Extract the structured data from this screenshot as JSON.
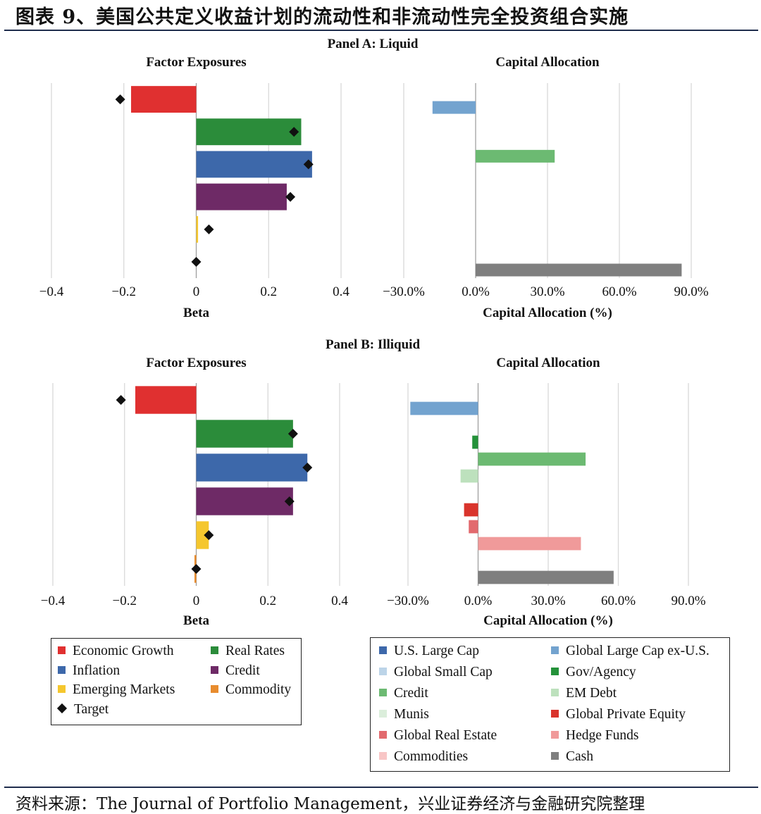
{
  "figure": {
    "title": "图表 9、美国公共定义收益计划的流动性和非流动性完全投资组合实施",
    "source": "资料来源：The Journal of Portfolio Management，兴业证券经济与金融研究院整理"
  },
  "colors": {
    "Economic Growth": "#e03030",
    "Real Rates": "#2b8c3a",
    "Inflation": "#3d68aa",
    "Credit (factor)": "#6e2a66",
    "Emerging Markets": "#f5c72e",
    "Commodity": "#e88c2e",
    "Target": "#111111",
    "U.S. Large Cap": "#3d68aa",
    "Global Large Cap ex-U.S.": "#73a3cf",
    "Global Small Cap": "#bcd4e8",
    "Gov/Agency": "#24923a",
    "Credit": "#6cba72",
    "EM Debt": "#bde1bd",
    "Munis": "#dbeedb",
    "Global Private Equity": "#d9342c",
    "Global Real Estate": "#e26a6e",
    "Hedge Funds": "#f09a9a",
    "Commodities": "#f8c6c6",
    "Cash": "#7f7f7f",
    "gridline": "#d9d9d9",
    "zeroline": "#9a9a9a"
  },
  "chart_data": [
    {
      "id": "A-factor",
      "type": "bar",
      "orientation": "horizontal",
      "panel": "Panel A: Liquid",
      "title": "Factor Exposures",
      "xlabel": "Beta",
      "xlim": [
        -0.4,
        0.4
      ],
      "ticks": [
        -0.4,
        -0.2,
        0,
        0.2,
        0.4
      ],
      "tick_labels": [
        "−0.4",
        "−0.2",
        "0",
        "0.2",
        "0.4"
      ],
      "categories": [
        "Economic Growth",
        "Real Rates",
        "Inflation",
        "Credit",
        "Emerging Markets",
        "Commodity"
      ],
      "values": [
        -0.18,
        0.29,
        0.32,
        0.25,
        0.005,
        0.0
      ],
      "targets": [
        -0.21,
        0.27,
        0.31,
        0.26,
        0.035,
        0.0
      ]
    },
    {
      "id": "A-alloc",
      "type": "bar",
      "orientation": "horizontal",
      "title": "Capital Allocation",
      "xlabel": "Capital Allocation (%)",
      "xlim": [
        -30,
        90
      ],
      "ticks": [
        -30,
        0,
        30,
        60,
        90
      ],
      "tick_labels": [
        "−30.0%",
        "0.0%",
        "30.0%",
        "60.0%",
        "90.0%"
      ],
      "categories": [
        "U.S. Large Cap",
        "Global Large Cap ex-U.S.",
        "Global Small Cap",
        "Gov/Agency",
        "Credit",
        "EM Debt",
        "Munis",
        "Global Private Equity",
        "Global Real Estate",
        "Hedge Funds",
        "Commodities",
        "Cash"
      ],
      "values": [
        0,
        -18,
        0,
        0,
        33,
        0,
        0,
        0,
        0,
        0,
        0,
        86
      ]
    },
    {
      "id": "B-factor",
      "type": "bar",
      "orientation": "horizontal",
      "panel": "Panel B: Illiquid",
      "title": "Factor Exposures",
      "xlabel": "Beta",
      "xlim": [
        -0.4,
        0.4
      ],
      "ticks": [
        -0.4,
        -0.2,
        0,
        0.2,
        0.4
      ],
      "tick_labels": [
        "−0.4",
        "−0.2",
        "0",
        "0.2",
        "0.4"
      ],
      "categories": [
        "Economic Growth",
        "Real Rates",
        "Inflation",
        "Credit",
        "Emerging Markets",
        "Commodity"
      ],
      "values": [
        -0.17,
        0.27,
        0.31,
        0.27,
        0.035,
        -0.005
      ],
      "targets": [
        -0.21,
        0.27,
        0.31,
        0.26,
        0.035,
        0.0
      ]
    },
    {
      "id": "B-alloc",
      "type": "bar",
      "orientation": "horizontal",
      "title": "Capital Allocation",
      "xlabel": "Capital Allocation (%)",
      "xlim": [
        -30,
        90
      ],
      "ticks": [
        -30,
        0,
        30,
        60,
        90
      ],
      "tick_labels": [
        "−30.0%",
        "0.0%",
        "30.0%",
        "60.0%",
        "90.0%"
      ],
      "categories": [
        "U.S. Large Cap",
        "Global Large Cap ex-U.S.",
        "Global Small Cap",
        "Gov/Agency",
        "Credit",
        "EM Debt",
        "Munis",
        "Global Private Equity",
        "Global Real Estate",
        "Hedge Funds",
        "Commodities",
        "Cash"
      ],
      "values": [
        0,
        -29,
        0,
        -2.5,
        46,
        -7.5,
        0,
        -6,
        -4,
        44,
        0,
        58
      ]
    }
  ],
  "legend_factor": {
    "items": [
      {
        "label": "Economic Growth",
        "kind": "swatch",
        "color": "#e03030"
      },
      {
        "label": "Real Rates",
        "kind": "swatch",
        "color": "#2b8c3a"
      },
      {
        "label": "Inflation",
        "kind": "swatch",
        "color": "#3d68aa"
      },
      {
        "label": "Credit",
        "kind": "swatch",
        "color": "#6e2a66"
      },
      {
        "label": "Emerging Markets",
        "kind": "swatch",
        "color": "#f5c72e"
      },
      {
        "label": "Commodity",
        "kind": "swatch",
        "color": "#e88c2e"
      },
      {
        "label": "Target",
        "kind": "diamond",
        "color": "#111111"
      }
    ]
  },
  "legend_alloc": {
    "items": [
      {
        "label": "U.S. Large Cap",
        "color": "#3d68aa"
      },
      {
        "label": "Global Large Cap ex-U.S.",
        "color": "#73a3cf"
      },
      {
        "label": "Global Small Cap",
        "color": "#bcd4e8"
      },
      {
        "label": "Gov/Agency",
        "color": "#24923a"
      },
      {
        "label": "Credit",
        "color": "#6cba72"
      },
      {
        "label": "EM Debt",
        "color": "#bde1bd"
      },
      {
        "label": "Munis",
        "color": "#dbeedb"
      },
      {
        "label": "Global Private Equity",
        "color": "#d9342c"
      },
      {
        "label": "Global Real Estate",
        "color": "#e26a6e"
      },
      {
        "label": "Hedge Funds",
        "color": "#f09a9a"
      },
      {
        "label": "Commodities",
        "color": "#f8c6c6"
      },
      {
        "label": "Cash",
        "color": "#7f7f7f"
      }
    ]
  }
}
